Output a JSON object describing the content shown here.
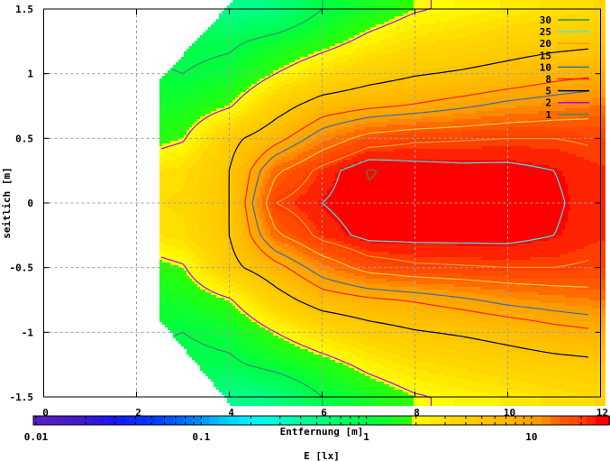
{
  "chart_data": {
    "type": "heatmap",
    "subtype": "contour-map",
    "xlabel": "Entfernung [m]",
    "ylabel": "seitlich [m]",
    "cblabel": "E [lx]",
    "xlim": [
      0,
      12
    ],
    "ylim": [
      -1.5,
      1.5
    ],
    "cblim": [
      0.01,
      30
    ],
    "cb_scale": "log",
    "grid": true,
    "legend_position": "top-right",
    "x_ticks": [
      "0",
      "2",
      "4",
      "6",
      "8",
      "10",
      "12"
    ],
    "x_tick_values": [
      0,
      2,
      4,
      6,
      8,
      10,
      12
    ],
    "y_ticks": [
      "1.5",
      "1",
      "0.5",
      "0",
      "-0.5",
      "-1",
      "-1.5"
    ],
    "y_tick_values": [
      1.5,
      1,
      0.5,
      0,
      -0.5,
      -1,
      -1.5
    ],
    "cb_ticks": [
      "0.01",
      "0.1",
      "1",
      "10"
    ],
    "cb_tick_values": [
      0.01,
      0.1,
      1,
      10
    ],
    "grid_x": [
      2,
      3,
      4,
      5,
      6,
      7,
      8,
      9,
      10,
      11,
      12
    ],
    "grid_y": [
      1.5,
      1.25,
      1.0,
      0.75,
      0.5,
      0.25,
      0,
      -0.25,
      -0.5,
      -0.75,
      -1.0,
      -1.25,
      -1.5
    ],
    "z": [
      [
        0.7,
        0.7,
        0.45,
        0.55,
        1.0,
        1.4,
        1.9,
        2.2,
        2.5,
        2.9,
        3.2
      ],
      [
        0.9,
        0.85,
        0.9,
        1.2,
        1.6,
        2.3,
        3.0,
        3.3,
        3.8,
        4.2,
        4.5
      ],
      [
        1.1,
        1.0,
        1.2,
        2.0,
        3.0,
        4.0,
        4.8,
        5.3,
        6.0,
        7.0,
        7.7
      ],
      [
        1.3,
        1.4,
        1.9,
        4.0,
        6.5,
        7.5,
        8.3,
        9.5,
        11,
        12,
        13
      ],
      [
        1.5,
        1.9,
        4.3,
        7.0,
        12,
        17,
        19,
        19.5,
        20,
        20,
        19
      ],
      [
        2.6,
        3.0,
        5.0,
        14,
        22,
        30.5,
        28,
        27,
        27,
        25,
        22
      ],
      [
        3.0,
        3.3,
        5.0,
        20,
        25,
        29,
        28,
        28,
        28,
        26,
        22
      ],
      [
        2.6,
        3.0,
        5.0,
        14,
        22,
        27,
        27,
        27,
        27,
        25,
        22
      ],
      [
        1.5,
        1.9,
        4.3,
        7.0,
        12,
        17,
        19,
        19.5,
        20,
        20,
        19
      ],
      [
        1.3,
        1.4,
        1.9,
        4.0,
        6.5,
        7.5,
        8.3,
        9.5,
        11,
        12,
        13
      ],
      [
        1.1,
        1.0,
        1.2,
        2.0,
        3.0,
        4.0,
        4.8,
        5.3,
        6.0,
        7.0,
        7.7
      ],
      [
        0.9,
        0.85,
        0.9,
        1.2,
        1.6,
        2.3,
        3.0,
        3.3,
        3.8,
        4.2,
        4.5
      ],
      [
        0.7,
        0.7,
        0.45,
        0.55,
        1.0,
        1.4,
        1.9,
        2.2,
        2.5,
        2.9,
        3.2
      ]
    ],
    "contours": [
      {
        "level": 30,
        "label": "30",
        "color": "#3a8a50"
      },
      {
        "level": 25,
        "label": "25",
        "color": "#40e8e8"
      },
      {
        "level": 20,
        "label": "20",
        "color": "#ff9a20"
      },
      {
        "level": 15,
        "label": "15",
        "color": "#ffc830"
      },
      {
        "level": 10,
        "label": "10",
        "color": "#3a6ea0"
      },
      {
        "level": 8,
        "label": "8",
        "color": "#ff2020"
      },
      {
        "level": 5,
        "label": "5",
        "color": "#000000"
      },
      {
        "level": 2,
        "label": "2",
        "color": "#b000ff"
      },
      {
        "level": 1,
        "label": "1",
        "color": "#3a8a70"
      }
    ],
    "colormap": [
      {
        "log10": -2.02,
        "color": "#5a20c0"
      },
      {
        "log10": -1.73,
        "color": "#4018d0"
      },
      {
        "log10": -1.51,
        "color": "#1818f0"
      },
      {
        "log10": -1.27,
        "color": "#0040ff"
      },
      {
        "log10": -1.05,
        "color": "#0080ff"
      },
      {
        "log10": -0.89,
        "color": "#00c0ff"
      },
      {
        "log10": -0.72,
        "color": "#00f0ff"
      },
      {
        "log10": -0.58,
        "color": "#00ffe0"
      },
      {
        "log10": -0.42,
        "color": "#00ffa0"
      },
      {
        "log10": -0.2,
        "color": "#00ff70"
      },
      {
        "log10": 0.02,
        "color": "#00ff40"
      },
      {
        "log10": 0.299,
        "color": "#30ff00"
      },
      {
        "log10": 0.301,
        "color": "#ffff00"
      },
      {
        "log10": 0.51,
        "color": "#ffd800"
      },
      {
        "log10": 0.84,
        "color": "#ffb800"
      },
      {
        "log10": 1.05,
        "color": "#ff9800"
      },
      {
        "log10": 1.16,
        "color": "#ff6000"
      },
      {
        "log10": 1.33,
        "color": "#ff3800"
      },
      {
        "log10": 1.41,
        "color": "#ff0000"
      },
      {
        "log10": 1.48,
        "color": "#ff0000"
      }
    ]
  }
}
